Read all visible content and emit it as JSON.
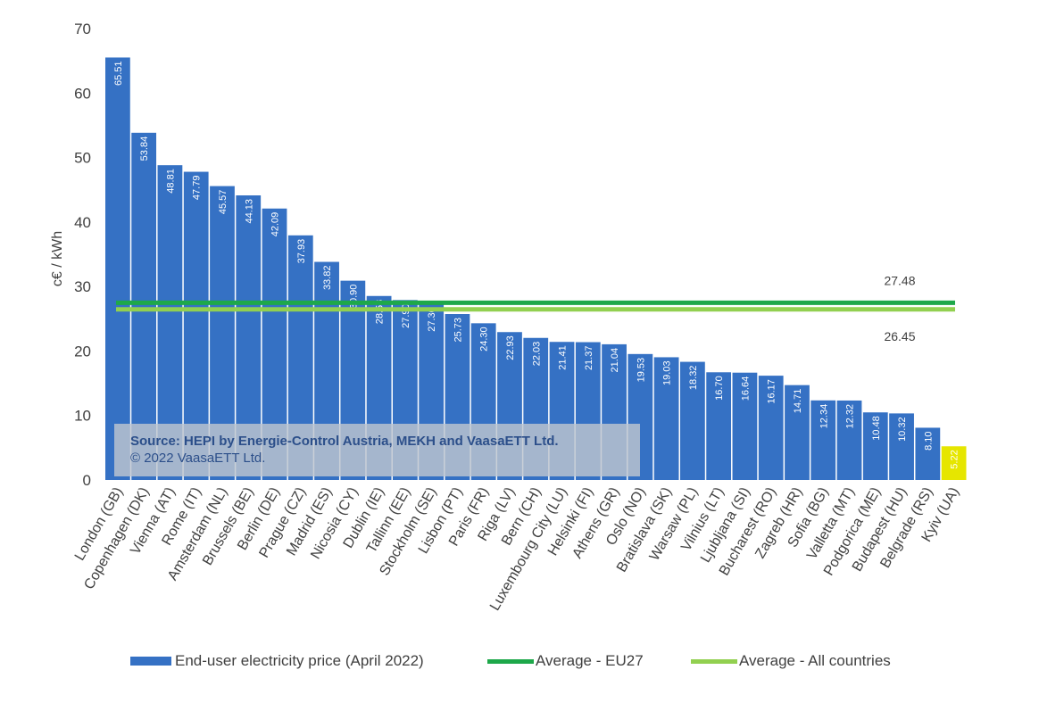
{
  "chart_data": {
    "type": "bar",
    "ylabel": "c€ / kWh",
    "ylim": [
      0,
      70
    ],
    "yticks": [
      0,
      10,
      20,
      30,
      40,
      50,
      60,
      70
    ],
    "categories": [
      "London (GB)",
      "Copenhagen (DK)",
      "Vienna (AT)",
      "Rome (IT)",
      "Amsterdam (NL)",
      "Brussels (BE)",
      "Berlin (DE)",
      "Prague (CZ)",
      "Madrid (ES)",
      "Nicosia (CY)",
      "Dublin (IE)",
      "Tallinn (EE)",
      "Stockholm (SE)",
      "Lisbon (PT)",
      "Paris (FR)",
      "Riga (LV)",
      "Bern (CH)",
      "Luxembourg City (LU)",
      "Helsinki (FI)",
      "Athens (GR)",
      "Oslo (NO)",
      "Bratislava (SK)",
      "Warsaw (PL)",
      "Vilnius (LT)",
      "Ljubljana (SI)",
      "Bucharest (RO)",
      "Zagreb (HR)",
      "Sofia (BG)",
      "Valletta (MT)",
      "Podgorica (ME)",
      "Budapest (HU)",
      "Belgrade (RS)",
      "Kyiv (UA)"
    ],
    "series": [
      {
        "name": "End-user electricity price (April 2022)",
        "values": [
          65.51,
          53.84,
          48.81,
          47.79,
          45.57,
          44.13,
          42.09,
          37.93,
          33.82,
          30.9,
          28.53,
          27.9,
          27.36,
          25.73,
          24.3,
          22.93,
          22.03,
          21.41,
          21.37,
          21.04,
          19.53,
          19.03,
          18.32,
          16.7,
          16.64,
          16.17,
          14.71,
          12.34,
          12.32,
          10.48,
          10.32,
          8.1,
          5.22
        ],
        "labels": [
          "65.51",
          "53.84",
          "48.81",
          "47.79",
          "45.57",
          "44.13",
          "42.09",
          "37.93",
          "33.82",
          "30.90",
          "28.53",
          "27.90",
          "27.36",
          "25.73",
          "24.30",
          "22.93",
          "22.03",
          "21.41",
          "21.37",
          "21.04",
          "19.53",
          "19.03",
          "18.32",
          "16.70",
          "16.64",
          "16.17",
          "14.71",
          "12.34",
          "12.32",
          "10.48",
          "10.32",
          "8.10",
          "5.22"
        ],
        "color": "#3571c4",
        "highlight_color": "#e6e600",
        "highlight_index": 32
      }
    ],
    "averages": [
      {
        "name": "Average - EU27",
        "value": 27.48,
        "label": "27.48",
        "color": "#1ea84a"
      },
      {
        "name": "Average - All countries",
        "value": 26.45,
        "label": "26.45",
        "color": "#92d050"
      }
    ],
    "source_line1": "Source: HEPI by Energie-Control Austria, MEKH and VaasaETT Ltd.",
    "source_line2": "© 2022 VaasaETT Ltd.",
    "legend_position": "bottom",
    "grid": false
  }
}
